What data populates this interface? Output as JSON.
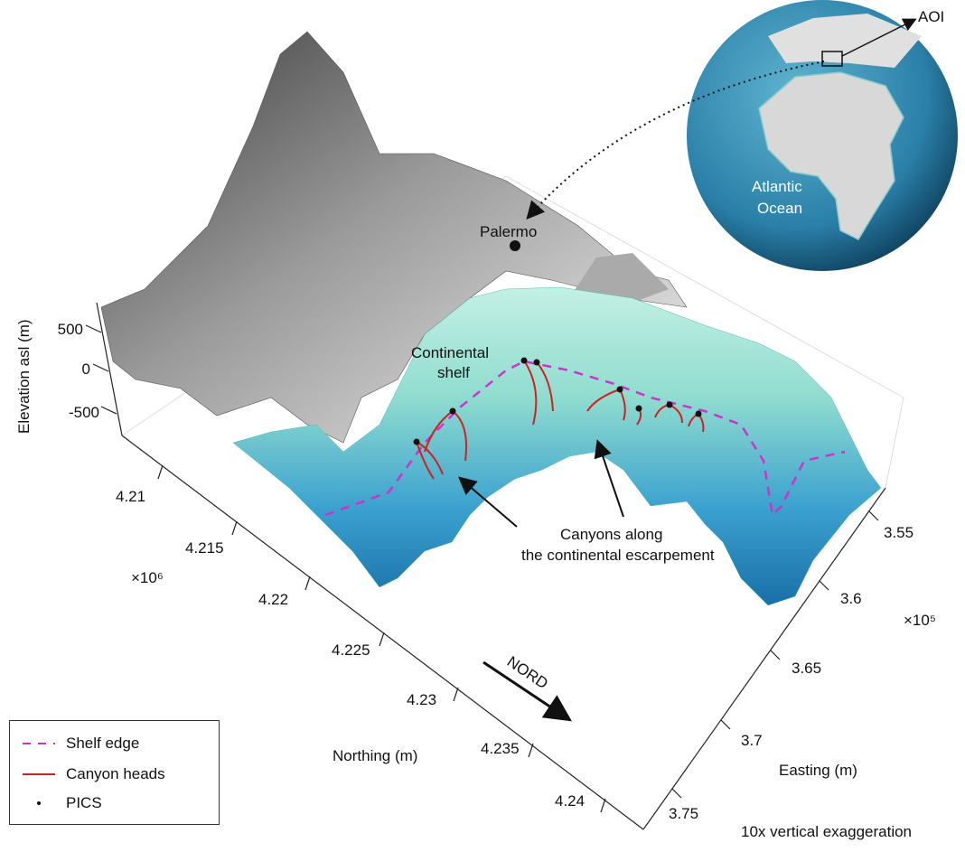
{
  "axes": {
    "elevation": {
      "label": "Elevation asl (m)",
      "ticks": [
        "500",
        "0",
        "-500"
      ]
    },
    "northing": {
      "label": "Northing (m)",
      "multiplier": "×10⁶",
      "ticks": [
        "4.21",
        "4.215",
        "4.22",
        "4.225",
        "4.23",
        "4.235",
        "4.24"
      ]
    },
    "easting": {
      "label": "Easting (m)",
      "multiplier": "×10⁵",
      "ticks": [
        "3.55",
        "3.6",
        "3.65",
        "3.7",
        "3.75"
      ]
    }
  },
  "annotations": {
    "palermo": "Palermo",
    "continental_shelf_1": "Continental",
    "continental_shelf_2": "shelf",
    "canyons_1": "Canyons along",
    "canyons_2": "the continental escarpement",
    "nord": "NORD",
    "aoi": "AOI",
    "atlantic_1": "Atlantic",
    "atlantic_2": "Ocean",
    "exaggeration": "10x vertical exaggeration"
  },
  "legend": [
    {
      "label": "Shelf edge",
      "color": "#cc33cc",
      "style": "dashed"
    },
    {
      "label": "Canyon heads",
      "color": "#cc2222",
      "style": "solid"
    },
    {
      "label": "PICS",
      "color": "#111111",
      "style": "dot"
    }
  ],
  "colors": {
    "land": "#9a9a9a",
    "shelf": "#a8e6d8",
    "deep_sea": "#1f7fb8",
    "globe_ocean": "#2a7fa8"
  }
}
